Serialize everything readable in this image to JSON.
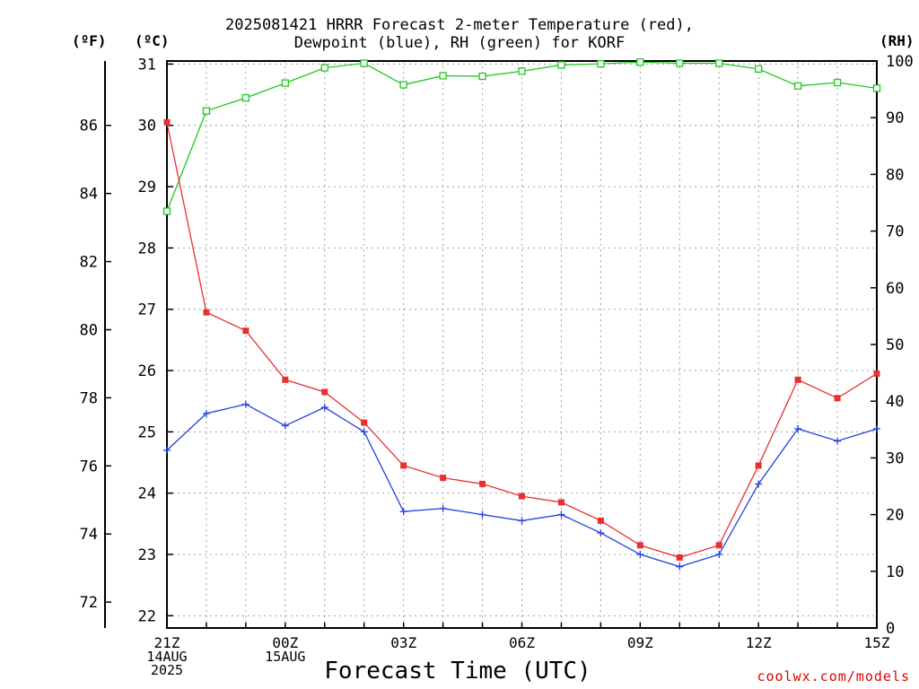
{
  "header": {
    "title_line1": "2025081421 HRRR Forecast 2-meter Temperature (red),",
    "title_line2": "Dewpoint (blue), RH (green) for KORF",
    "unit_f": "(ºF)",
    "unit_c": "(ºC)",
    "unit_rh": "(RH)"
  },
  "footer": {
    "xaxis_title": "Forecast Time (UTC)",
    "credit": "coolwx.com/models"
  },
  "colors": {
    "temperature": "#e83030",
    "dewpoint": "#2040e0",
    "rh": "#20c820",
    "grid": "#a0a0a0"
  },
  "chart_data": {
    "type": "line",
    "title": "2025081421 HRRR Forecast 2-meter Temperature (red), Dewpoint (blue), RH (green) for KORF",
    "xlabel": "Forecast Time (UTC)",
    "x": [
      0,
      1,
      2,
      3,
      4,
      5,
      6,
      7,
      8,
      9,
      10,
      11,
      12,
      13,
      14,
      15,
      16,
      17,
      18
    ],
    "x_tick_labels": [
      {
        "pos": 0,
        "lines": [
          "21Z",
          "14AUG",
          "2025"
        ]
      },
      {
        "pos": 3,
        "lines": [
          "00Z",
          "15AUG"
        ]
      },
      {
        "pos": 6,
        "lines": [
          "03Z"
        ]
      },
      {
        "pos": 9,
        "lines": [
          "06Z"
        ]
      },
      {
        "pos": 12,
        "lines": [
          "09Z"
        ]
      },
      {
        "pos": 15,
        "lines": [
          "12Z"
        ]
      },
      {
        "pos": 18,
        "lines": [
          "15Z"
        ]
      }
    ],
    "y_left_c": {
      "label": "(ºC)",
      "range": [
        21.8,
        31.05
      ],
      "ticks": [
        22,
        23,
        24,
        25,
        26,
        27,
        28,
        29,
        30,
        31
      ]
    },
    "y_left_f": {
      "label": "(ºF)",
      "ticks": [
        72,
        74,
        76,
        78,
        80,
        82,
        84,
        86
      ]
    },
    "y_right": {
      "label": "(RH)",
      "range": [
        0,
        100
      ],
      "ticks": [
        0,
        10,
        20,
        30,
        40,
        50,
        60,
        70,
        80,
        90,
        100
      ]
    },
    "grid": true,
    "series": [
      {
        "name": "Temperature",
        "axis": "celsius",
        "marker": "filled-square",
        "values": [
          30.05,
          26.95,
          26.65,
          25.85,
          25.65,
          25.15,
          24.45,
          24.25,
          24.15,
          23.95,
          23.85,
          23.55,
          23.15,
          22.95,
          23.15,
          24.45,
          25.85,
          25.55,
          25.95
        ]
      },
      {
        "name": "Dewpoint",
        "axis": "celsius",
        "marker": "plus",
        "values": [
          24.7,
          25.3,
          25.45,
          25.1,
          25.4,
          25.0,
          23.7,
          23.75,
          23.65,
          23.55,
          23.65,
          23.35,
          23.0,
          22.8,
          23.0,
          24.15,
          25.05,
          24.85,
          25.05
        ]
      },
      {
        "name": "RH",
        "axis": "rh",
        "marker": "open-square",
        "values": [
          73.5,
          91.2,
          93.5,
          96.1,
          98.8,
          99.6,
          95.8,
          97.4,
          97.3,
          98.2,
          99.3,
          99.5,
          99.8,
          99.6,
          99.6,
          98.6,
          95.6,
          96.2,
          95.2
        ]
      }
    ]
  }
}
